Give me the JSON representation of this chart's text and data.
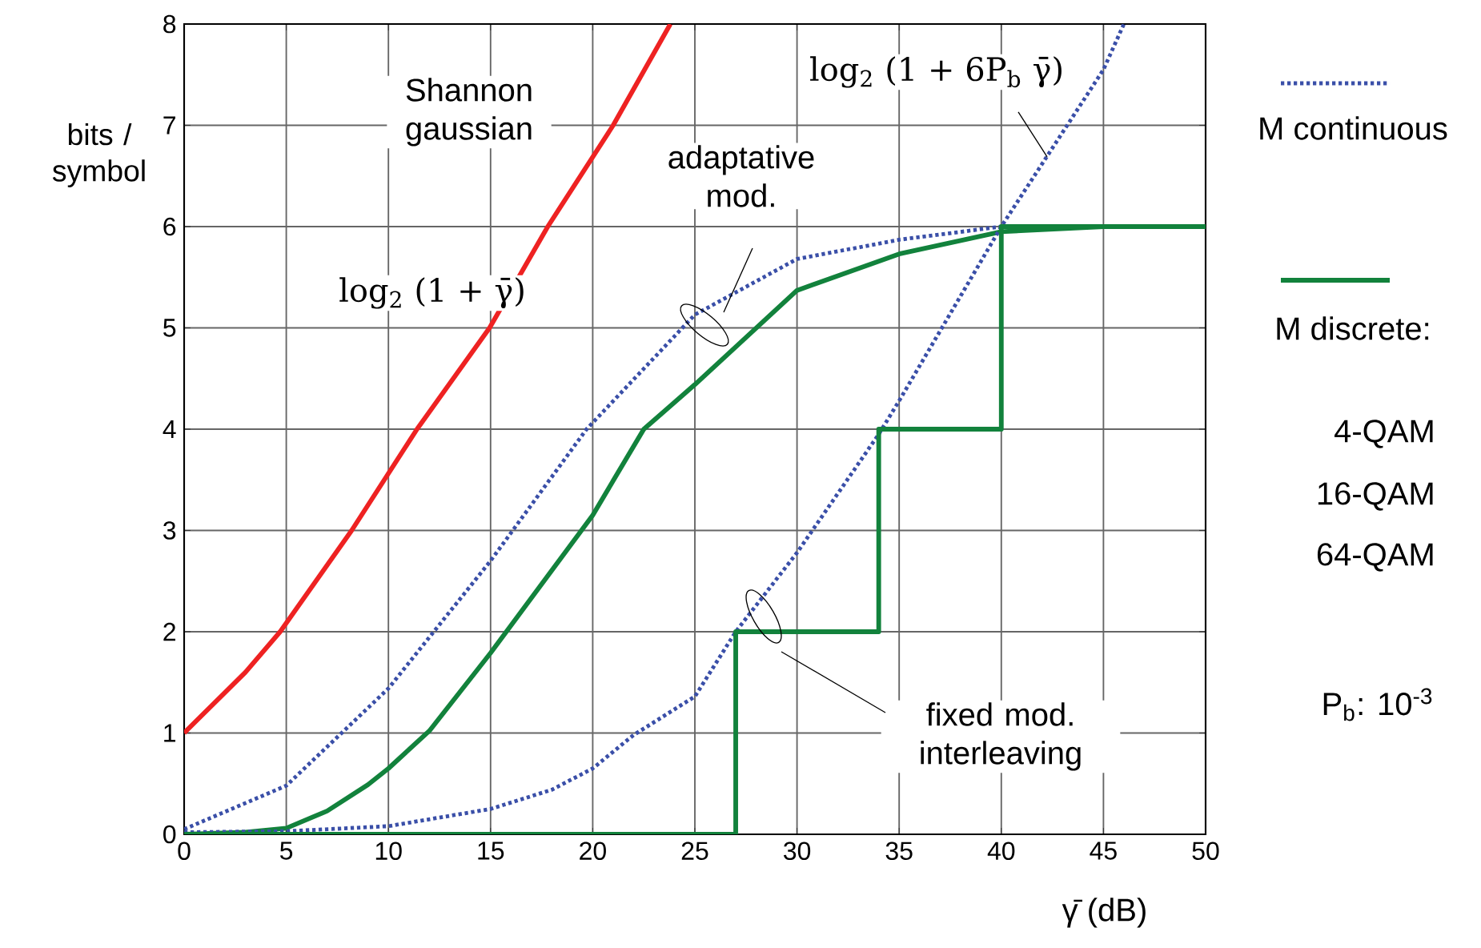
{
  "chart_data": {
    "type": "line",
    "xlabel": "γ̄ (dB)",
    "ylabel": "bits / symbol",
    "xlim": [
      0,
      50
    ],
    "ylim": [
      0,
      8
    ],
    "xticks": [
      0,
      5,
      10,
      15,
      20,
      25,
      30,
      35,
      40,
      45,
      50
    ],
    "yticks": [
      0,
      1,
      2,
      3,
      4,
      5,
      6,
      7,
      8
    ],
    "grid": true,
    "legend": "right",
    "marker": "none",
    "series": [
      {
        "color": "#ee2222",
        "line_style": "solid",
        "x": [
          0,
          3,
          4.7,
          8.2,
          11.4,
          14.95,
          17.8,
          21.0,
          23.8
        ],
        "values": [
          1,
          1.6,
          2,
          3,
          4,
          5,
          6,
          7,
          8
        ]
      },
      {
        "name": "M continuous",
        "color": "#3a4fa8",
        "line_style": "dotted",
        "x": [
          0,
          5,
          10,
          15,
          19.7,
          25,
          30,
          35,
          40
        ],
        "values": [
          0.05,
          0.48,
          1.44,
          2.7,
          4,
          5.13,
          5.68,
          5.87,
          6
        ]
      },
      {
        "name": "M discrete:",
        "color": "#12823c",
        "line_style": "solid",
        "x": [
          0,
          3,
          5,
          7,
          9,
          10,
          12,
          15,
          20,
          22.5,
          25,
          30,
          35,
          40,
          45,
          50
        ],
        "values": [
          0,
          0.02,
          0.06,
          0.23,
          0.49,
          0.65,
          1.02,
          1.79,
          3.15,
          4,
          4.44,
          5.37,
          5.73,
          5.95,
          6,
          6
        ]
      },
      {
        "color": "#3a4fa8",
        "line_style": "dotted",
        "x": [
          0,
          5,
          10,
          15,
          18,
          20,
          22,
          25,
          27,
          30,
          34,
          35,
          40,
          45,
          46
        ],
        "values": [
          0.02,
          0.03,
          0.08,
          0.25,
          0.44,
          0.65,
          0.98,
          1.36,
          2,
          2.78,
          3.95,
          4.28,
          6,
          7.55,
          8
        ]
      },
      {
        "type": "step",
        "color": "#12823c",
        "line_style": "solid",
        "x": [
          0,
          27,
          34,
          40,
          50
        ],
        "values": [
          0,
          2,
          4,
          6,
          6
        ]
      }
    ],
    "annotations": [
      "Shannon gaussian",
      "log$_{2}$ (1 + γ̄)",
      "log$_{2}$ (1 + 6P$_{b}$ γ̄)",
      "adaptative mod.",
      "fixed mod. interleaving",
      "4-QAM",
      "16-QAM",
      "64-QAM",
      "P$_{b}$: 10$^{-3}$"
    ]
  }
}
